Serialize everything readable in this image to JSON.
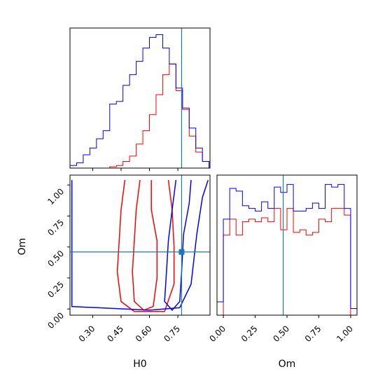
{
  "colors": {
    "red_series": "#ff0000",
    "blue_series": "#0000ff",
    "truth_line": "#1f77b4",
    "frame": "#000000"
  },
  "chart_data": [
    {
      "type": "histogram",
      "panel": "H0 marginal",
      "xlim": [
        0.18,
        0.92
      ],
      "bin_edges": [
        0.18,
        0.215,
        0.25,
        0.285,
        0.32,
        0.355,
        0.39,
        0.425,
        0.46,
        0.495,
        0.53,
        0.565,
        0.6,
        0.635,
        0.67,
        0.705,
        0.74,
        0.775,
        0.81,
        0.845,
        0.88,
        0.915
      ],
      "series": [
        {
          "color": "red",
          "values": [
            0,
            0,
            0,
            0,
            0,
            0,
            0.01,
            0.02,
            0.05,
            0.09,
            0.18,
            0.28,
            0.4,
            0.55,
            0.7,
            0.78,
            0.58,
            0.44,
            0.24,
            0.12,
            0.05
          ]
        },
        {
          "color": "blue",
          "values": [
            0.02,
            0.04,
            0.1,
            0.15,
            0.22,
            0.28,
            0.48,
            0.5,
            0.62,
            0.7,
            0.8,
            0.9,
            0.98,
            1.0,
            0.9,
            0.78,
            0.6,
            0.45,
            0.3,
            0.15,
            0.05
          ]
        }
      ],
      "truth_x": 0.77
    },
    {
      "type": "contour",
      "panel": "H0 vs Om",
      "xlabel": "H0",
      "ylabel": "Om",
      "xlim": [
        0.18,
        0.92
      ],
      "ylim": [
        -0.05,
        1.08
      ],
      "x_ticks": [
        "0.30",
        "0.45",
        "0.60",
        "0.75"
      ],
      "y_ticks": [
        "0.00",
        "0.25",
        "0.50",
        "0.75",
        "1.00"
      ],
      "x_tick_values": [
        0.3,
        0.45,
        0.6,
        0.75
      ],
      "y_tick_values": [
        0.0,
        0.25,
        0.5,
        0.75,
        1.0
      ],
      "truth": {
        "x": 0.77,
        "y": 0.46
      },
      "series": [
        {
          "color": "red",
          "levels": [
            [
              [
                0.55,
                1.04
              ],
              [
                0.53,
                0.8
              ],
              [
                0.52,
                0.55
              ],
              [
                0.51,
                0.3
              ],
              [
                0.52,
                0.06
              ],
              [
                0.57,
                -0.01
              ],
              [
                0.62,
                0.02
              ],
              [
                0.64,
                0.25
              ],
              [
                0.64,
                0.55
              ],
              [
                0.61,
                0.8
              ],
              [
                0.61,
                1.04
              ]
            ],
            [
              [
                0.47,
                1.04
              ],
              [
                0.45,
                0.8
              ],
              [
                0.44,
                0.55
              ],
              [
                0.43,
                0.3
              ],
              [
                0.45,
                0.06
              ],
              [
                0.52,
                -0.02
              ],
              [
                0.68,
                -0.02
              ],
              [
                0.73,
                0.2
              ],
              [
                0.73,
                0.5
              ],
              [
                0.72,
                0.8
              ],
              [
                0.7,
                1.04
              ]
            ]
          ]
        },
        {
          "color": "blue",
          "levels": [
            [
              [
                0.74,
                1.04
              ],
              [
                0.72,
                0.8
              ],
              [
                0.7,
                0.55
              ],
              [
                0.69,
                0.3
              ],
              [
                0.68,
                0.06
              ],
              [
                0.72,
                -0.01
              ],
              [
                0.76,
                0.06
              ],
              [
                0.77,
                0.3
              ],
              [
                0.78,
                0.6
              ],
              [
                0.81,
                0.85
              ],
              [
                0.82,
                1.04
              ]
            ],
            [
              [
                0.19,
                1.04
              ],
              [
                0.19,
                0.02
              ],
              [
                0.6,
                -0.01
              ],
              [
                0.76,
                0.01
              ],
              [
                0.82,
                0.2
              ],
              [
                0.85,
                0.6
              ],
              [
                0.88,
                0.9
              ],
              [
                0.91,
                1.04
              ]
            ]
          ]
        }
      ]
    },
    {
      "type": "histogram",
      "panel": "Om marginal",
      "xlabel": "Om",
      "xlim": [
        -0.05,
        1.05
      ],
      "x_ticks": [
        "0.00",
        "0.25",
        "0.50",
        "0.75",
        "1.00"
      ],
      "x_tick_values": [
        0.0,
        0.25,
        0.5,
        0.75,
        1.0
      ],
      "bin_edges": [
        -0.05,
        0.0,
        0.05,
        0.1,
        0.15,
        0.2,
        0.25,
        0.3,
        0.35,
        0.4,
        0.45,
        0.5,
        0.55,
        0.6,
        0.65,
        0.7,
        0.75,
        0.8,
        0.85,
        0.9,
        0.95,
        1.0,
        1.05
      ],
      "series": [
        {
          "color": "red",
          "values": [
            0.0,
            0.6,
            0.72,
            0.6,
            0.7,
            0.72,
            0.7,
            0.73,
            0.7,
            0.8,
            0.64,
            0.8,
            0.62,
            0.64,
            0.6,
            0.62,
            0.72,
            0.7,
            0.8,
            0.8,
            0.75,
            0.0
          ]
        },
        {
          "color": "blue",
          "values": [
            0.1,
            0.72,
            0.95,
            0.93,
            0.82,
            0.8,
            0.78,
            0.85,
            0.8,
            0.96,
            0.92,
            0.98,
            0.78,
            0.78,
            0.8,
            0.84,
            0.8,
            0.98,
            0.96,
            0.98,
            0.8,
            0.05
          ]
        }
      ],
      "truth_x": 0.47
    }
  ]
}
